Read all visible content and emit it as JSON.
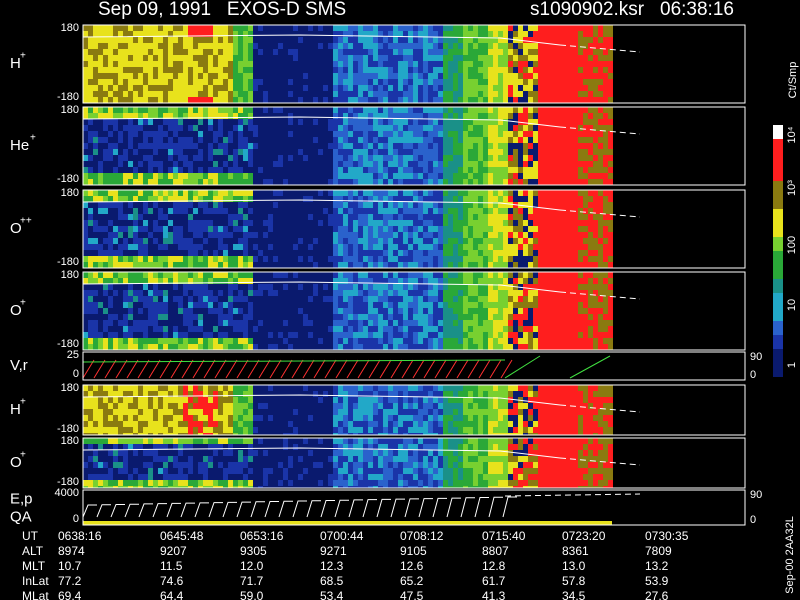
{
  "header": {
    "title": "Sep 09, 1991   EXOS-D SMS",
    "file": "s1090902.ksr",
    "time": "06:38:16"
  },
  "panels": [
    {
      "label": "H",
      "sup": "+",
      "ticks": [
        "180",
        "-180"
      ]
    },
    {
      "label": "He",
      "sup": "+",
      "ticks": [
        "180",
        "-180"
      ]
    },
    {
      "label": "O",
      "sup": "++",
      "ticks": [
        "180",
        "-180"
      ]
    },
    {
      "label": "O",
      "sup": "+",
      "ticks": [
        "180",
        "-180"
      ]
    },
    {
      "label": "V,r",
      "ticks": [
        "25",
        "0"
      ],
      "right_ticks": [
        "90",
        "0"
      ]
    },
    {
      "label": "H",
      "sup": "+",
      "ticks": [
        "180",
        "-180"
      ]
    },
    {
      "label": "O",
      "sup": "+",
      "ticks": [
        "180",
        "-180"
      ]
    },
    {
      "label": "E,p",
      "label2": "QA",
      "ticks": [
        "4000",
        "0"
      ],
      "right_ticks": [
        "90",
        "0"
      ]
    }
  ],
  "colorbar": {
    "unit": "Ct/Smp",
    "labels": [
      "10⁴",
      "10³",
      "100",
      "10",
      "1"
    ]
  },
  "table": {
    "header": "UT",
    "times": [
      "0638:16",
      "0645:48",
      "0653:16",
      "0700:44",
      "0708:12",
      "0715:40",
      "0723:20",
      "0730:35"
    ],
    "rows": [
      {
        "name": "ALT",
        "values": [
          "8974",
          "9207",
          "9305",
          "9271",
          "9105",
          "8807",
          "8361",
          "7809"
        ]
      },
      {
        "name": "MLT",
        "values": [
          "10.7",
          "11.5",
          "12.0",
          "12.3",
          "12.6",
          "12.8",
          "13.0",
          "13.2"
        ]
      },
      {
        "name": "InLat",
        "values": [
          "77.2",
          "74.6",
          "71.7",
          "68.5",
          "65.2",
          "61.7",
          "57.8",
          "53.9"
        ]
      },
      {
        "name": "MLat",
        "values": [
          "69.4",
          "64.4",
          "59.0",
          "53.4",
          "47.5",
          "41.3",
          "34.5",
          "27.6"
        ]
      }
    ]
  },
  "footer": "Sep-00 2AA32L"
}
